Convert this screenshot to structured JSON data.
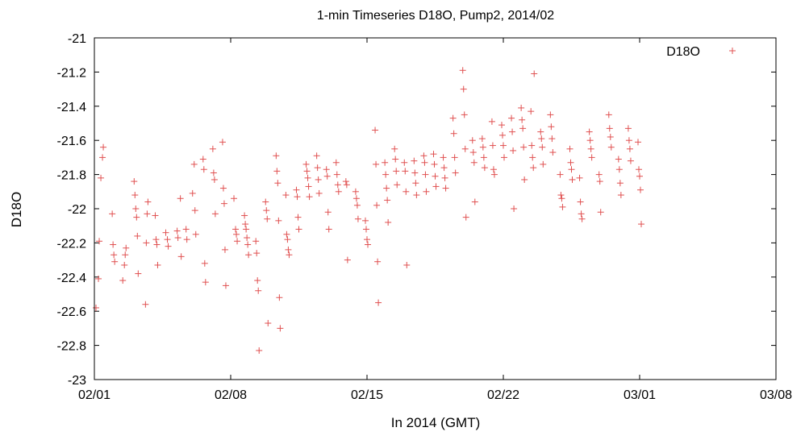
{
  "chart_data": {
    "type": "scatter",
    "title": "1-min Timeseries D18O, Pump2, 2014/02",
    "xlabel": "In 2014 (GMT)",
    "ylabel": "D18O",
    "xlim": [
      "2014-02-01",
      "2014-03-08"
    ],
    "ylim": [
      -23,
      -21
    ],
    "x_ticks": [
      "02/01",
      "02/08",
      "02/15",
      "02/22",
      "03/01",
      "03/08"
    ],
    "y_ticks": [
      "-21",
      "-21.2",
      "-21.4",
      "-21.6",
      "-21.8",
      "-22",
      "-22.2",
      "-22.4",
      "-22.6",
      "-22.8",
      "-23"
    ],
    "grid": false,
    "legend": "top-right",
    "marker": "+",
    "color": "#e05050",
    "series": [
      {
        "name": "D18O",
        "points": [
          [
            "2014-02-01T02:00",
            -22.58
          ],
          [
            "2014-02-01T05:00",
            -22.41
          ],
          [
            "2014-02-01T06:00",
            -22.19
          ],
          [
            "2014-02-01T08:00",
            -21.82
          ],
          [
            "2014-02-01T10:00",
            -21.7
          ],
          [
            "2014-02-01T11:00",
            -21.64
          ],
          [
            "2014-02-01T22:00",
            -22.03
          ],
          [
            "2014-02-01T23:00",
            -22.21
          ],
          [
            "2014-02-02T00:00",
            -22.27
          ],
          [
            "2014-02-02T01:00",
            -22.31
          ],
          [
            "2014-02-02T11:00",
            -22.42
          ],
          [
            "2014-02-02T13:00",
            -22.33
          ],
          [
            "2014-02-02T14:00",
            -22.27
          ],
          [
            "2014-02-02T15:00",
            -22.23
          ],
          [
            "2014-02-03T01:00",
            -21.84
          ],
          [
            "2014-02-03T02:00",
            -21.92
          ],
          [
            "2014-02-03T03:00",
            -22.0
          ],
          [
            "2014-02-03T04:00",
            -22.05
          ],
          [
            "2014-02-03T05:00",
            -22.16
          ],
          [
            "2014-02-03T06:00",
            -22.38
          ],
          [
            "2014-02-03T15:00",
            -22.56
          ],
          [
            "2014-02-03T16:00",
            -22.2
          ],
          [
            "2014-02-03T17:00",
            -22.03
          ],
          [
            "2014-02-03T18:00",
            -21.96
          ],
          [
            "2014-02-04T03:00",
            -22.04
          ],
          [
            "2014-02-04T04:00",
            -22.18
          ],
          [
            "2014-02-04T05:00",
            -22.21
          ],
          [
            "2014-02-04T06:00",
            -22.33
          ],
          [
            "2014-02-04T16:00",
            -22.14
          ],
          [
            "2014-02-04T18:00",
            -22.18
          ],
          [
            "2014-02-04T19:00",
            -22.22
          ],
          [
            "2014-02-05T06:00",
            -22.13
          ],
          [
            "2014-02-05T07:00",
            -22.17
          ],
          [
            "2014-02-05T10:00",
            -21.94
          ],
          [
            "2014-02-05T11:00",
            -22.28
          ],
          [
            "2014-02-05T17:00",
            -22.12
          ],
          [
            "2014-02-05T18:00",
            -22.18
          ],
          [
            "2014-02-06T01:00",
            -21.91
          ],
          [
            "2014-02-06T03:00",
            -21.74
          ],
          [
            "2014-02-06T04:00",
            -22.01
          ],
          [
            "2014-02-06T05:00",
            -22.15
          ],
          [
            "2014-02-06T14:00",
            -21.71
          ],
          [
            "2014-02-06T15:00",
            -21.77
          ],
          [
            "2014-02-06T16:00",
            -22.32
          ],
          [
            "2014-02-06T17:00",
            -22.43
          ],
          [
            "2014-02-07T02:00",
            -21.65
          ],
          [
            "2014-02-07T03:00",
            -21.79
          ],
          [
            "2014-02-07T04:00",
            -21.83
          ],
          [
            "2014-02-07T05:00",
            -22.03
          ],
          [
            "2014-02-07T14:00",
            -21.61
          ],
          [
            "2014-02-07T15:00",
            -21.88
          ],
          [
            "2014-02-07T16:00",
            -21.97
          ],
          [
            "2014-02-07T17:00",
            -22.24
          ],
          [
            "2014-02-07T18:00",
            -22.45
          ],
          [
            "2014-02-08T04:00",
            -21.94
          ],
          [
            "2014-02-08T06:00",
            -22.12
          ],
          [
            "2014-02-08T07:00",
            -22.15
          ],
          [
            "2014-02-08T08:00",
            -22.19
          ],
          [
            "2014-02-08T17:00",
            -22.04
          ],
          [
            "2014-02-08T18:00",
            -22.09
          ],
          [
            "2014-02-08T19:00",
            -22.12
          ],
          [
            "2014-02-08T20:00",
            -22.17
          ],
          [
            "2014-02-08T21:00",
            -22.21
          ],
          [
            "2014-02-08T22:00",
            -22.27
          ],
          [
            "2014-02-09T07:00",
            -22.19
          ],
          [
            "2014-02-09T08:00",
            -22.26
          ],
          [
            "2014-02-09T09:00",
            -22.42
          ],
          [
            "2014-02-09T10:00",
            -22.48
          ],
          [
            "2014-02-09T11:00",
            -22.83
          ],
          [
            "2014-02-09T19:00",
            -21.96
          ],
          [
            "2014-02-09T20:00",
            -22.01
          ],
          [
            "2014-02-09T21:00",
            -22.06
          ],
          [
            "2014-02-09T22:00",
            -22.67
          ],
          [
            "2014-02-10T08:00",
            -21.69
          ],
          [
            "2014-02-10T09:00",
            -21.78
          ],
          [
            "2014-02-10T10:00",
            -21.85
          ],
          [
            "2014-02-10T11:00",
            -22.07
          ],
          [
            "2014-02-10T12:00",
            -22.52
          ],
          [
            "2014-02-10T13:00",
            -22.7
          ],
          [
            "2014-02-10T20:00",
            -21.92
          ],
          [
            "2014-02-10T21:00",
            -22.15
          ],
          [
            "2014-02-10T22:00",
            -22.18
          ],
          [
            "2014-02-10T23:00",
            -22.24
          ],
          [
            "2014-02-11T00:00",
            -22.27
          ],
          [
            "2014-02-11T09:00",
            -21.89
          ],
          [
            "2014-02-11T10:00",
            -21.93
          ],
          [
            "2014-02-11T11:00",
            -22.05
          ],
          [
            "2014-02-11T12:00",
            -22.12
          ],
          [
            "2014-02-11T21:00",
            -21.74
          ],
          [
            "2014-02-11T22:00",
            -21.78
          ],
          [
            "2014-02-11T23:00",
            -21.82
          ],
          [
            "2014-02-12T00:00",
            -21.87
          ],
          [
            "2014-02-12T01:00",
            -21.93
          ],
          [
            "2014-02-12T10:00",
            -21.69
          ],
          [
            "2014-02-12T11:00",
            -21.76
          ],
          [
            "2014-02-12T12:00",
            -21.83
          ],
          [
            "2014-02-12T13:00",
            -21.91
          ],
          [
            "2014-02-12T22:00",
            -21.77
          ],
          [
            "2014-02-12T23:00",
            -21.81
          ],
          [
            "2014-02-13T00:00",
            -22.02
          ],
          [
            "2014-02-13T01:00",
            -22.12
          ],
          [
            "2014-02-13T10:00",
            -21.73
          ],
          [
            "2014-02-13T11:00",
            -21.8
          ],
          [
            "2014-02-13T12:00",
            -21.86
          ],
          [
            "2014-02-13T13:00",
            -21.9
          ],
          [
            "2014-02-13T22:00",
            -21.84
          ],
          [
            "2014-02-13T23:00",
            -21.86
          ],
          [
            "2014-02-14T00:00",
            -22.3
          ],
          [
            "2014-02-14T10:00",
            -21.9
          ],
          [
            "2014-02-14T11:00",
            -21.94
          ],
          [
            "2014-02-14T12:00",
            -21.98
          ],
          [
            "2014-02-14T13:00",
            -22.06
          ],
          [
            "2014-02-14T22:00",
            -22.07
          ],
          [
            "2014-02-14T23:00",
            -22.12
          ],
          [
            "2014-02-15T00:00",
            -22.18
          ],
          [
            "2014-02-15T01:00",
            -22.21
          ],
          [
            "2014-02-15T10:00",
            -21.54
          ],
          [
            "2014-02-15T11:00",
            -21.74
          ],
          [
            "2014-02-15T12:00",
            -21.98
          ],
          [
            "2014-02-15T13:00",
            -22.31
          ],
          [
            "2014-02-15T14:00",
            -22.55
          ],
          [
            "2014-02-15T22:00",
            -21.73
          ],
          [
            "2014-02-15T23:00",
            -21.8
          ],
          [
            "2014-02-16T00:00",
            -21.88
          ],
          [
            "2014-02-16T01:00",
            -21.95
          ],
          [
            "2014-02-16T02:00",
            -22.08
          ],
          [
            "2014-02-16T10:00",
            -21.65
          ],
          [
            "2014-02-16T11:00",
            -21.71
          ],
          [
            "2014-02-16T12:00",
            -21.78
          ],
          [
            "2014-02-16T13:00",
            -21.86
          ],
          [
            "2014-02-16T22:00",
            -21.73
          ],
          [
            "2014-02-16T23:00",
            -21.78
          ],
          [
            "2014-02-17T00:00",
            -21.9
          ],
          [
            "2014-02-17T01:00",
            -22.33
          ],
          [
            "2014-02-17T10:00",
            -21.72
          ],
          [
            "2014-02-17T11:00",
            -21.79
          ],
          [
            "2014-02-17T12:00",
            -21.85
          ],
          [
            "2014-02-17T13:00",
            -21.92
          ],
          [
            "2014-02-17T22:00",
            -21.69
          ],
          [
            "2014-02-17T23:00",
            -21.73
          ],
          [
            "2014-02-18T00:00",
            -21.8
          ],
          [
            "2014-02-18T01:00",
            -21.9
          ],
          [
            "2014-02-18T10:00",
            -21.68
          ],
          [
            "2014-02-18T11:00",
            -21.74
          ],
          [
            "2014-02-18T12:00",
            -21.81
          ],
          [
            "2014-02-18T13:00",
            -21.87
          ],
          [
            "2014-02-18T22:00",
            -21.7
          ],
          [
            "2014-02-18T23:00",
            -21.76
          ],
          [
            "2014-02-19T00:00",
            -21.82
          ],
          [
            "2014-02-19T01:00",
            -21.88
          ],
          [
            "2014-02-19T10:00",
            -21.47
          ],
          [
            "2014-02-19T11:00",
            -21.56
          ],
          [
            "2014-02-19T12:00",
            -21.7
          ],
          [
            "2014-02-19T13:00",
            -21.79
          ],
          [
            "2014-02-19T22:00",
            -21.19
          ],
          [
            "2014-02-19T23:00",
            -21.3
          ],
          [
            "2014-02-20T00:00",
            -21.45
          ],
          [
            "2014-02-20T01:00",
            -21.65
          ],
          [
            "2014-02-20T02:00",
            -22.05
          ],
          [
            "2014-02-20T10:00",
            -21.6
          ],
          [
            "2014-02-20T11:00",
            -21.67
          ],
          [
            "2014-02-20T12:00",
            -21.73
          ],
          [
            "2014-02-20T13:00",
            -21.96
          ],
          [
            "2014-02-20T22:00",
            -21.59
          ],
          [
            "2014-02-20T23:00",
            -21.64
          ],
          [
            "2014-02-21T00:00",
            -21.7
          ],
          [
            "2014-02-21T01:00",
            -21.76
          ],
          [
            "2014-02-21T10:00",
            -21.49
          ],
          [
            "2014-02-21T11:00",
            -21.63
          ],
          [
            "2014-02-21T12:00",
            -21.77
          ],
          [
            "2014-02-21T13:00",
            -21.8
          ],
          [
            "2014-02-21T22:00",
            -21.51
          ],
          [
            "2014-02-21T23:00",
            -21.57
          ],
          [
            "2014-02-22T00:00",
            -21.63
          ],
          [
            "2014-02-22T01:00",
            -21.7
          ],
          [
            "2014-02-22T10:00",
            -21.47
          ],
          [
            "2014-02-22T11:00",
            -21.55
          ],
          [
            "2014-02-22T12:00",
            -21.66
          ],
          [
            "2014-02-22T13:00",
            -22.0
          ],
          [
            "2014-02-22T22:00",
            -21.41
          ],
          [
            "2014-02-22T23:00",
            -21.48
          ],
          [
            "2014-02-23T00:00",
            -21.53
          ],
          [
            "2014-02-23T01:00",
            -21.64
          ],
          [
            "2014-02-23T02:00",
            -21.83
          ],
          [
            "2014-02-23T10:00",
            -21.43
          ],
          [
            "2014-02-23T11:00",
            -21.63
          ],
          [
            "2014-02-23T12:00",
            -21.7
          ],
          [
            "2014-02-23T13:00",
            -21.76
          ],
          [
            "2014-02-23T14:00",
            -21.21
          ],
          [
            "2014-02-23T22:00",
            -21.55
          ],
          [
            "2014-02-23T23:00",
            -21.59
          ],
          [
            "2014-02-24T00:00",
            -21.64
          ],
          [
            "2014-02-24T01:00",
            -21.74
          ],
          [
            "2014-02-24T10:00",
            -21.45
          ],
          [
            "2014-02-24T11:00",
            -21.52
          ],
          [
            "2014-02-24T12:00",
            -21.59
          ],
          [
            "2014-02-24T13:00",
            -21.67
          ],
          [
            "2014-02-24T22:00",
            -21.8
          ],
          [
            "2014-02-24T23:00",
            -21.92
          ],
          [
            "2014-02-25T00:00",
            -21.94
          ],
          [
            "2014-02-25T01:00",
            -21.99
          ],
          [
            "2014-02-25T10:00",
            -21.65
          ],
          [
            "2014-02-25T11:00",
            -21.73
          ],
          [
            "2014-02-25T12:00",
            -21.77
          ],
          [
            "2014-02-25T13:00",
            -21.83
          ],
          [
            "2014-02-25T22:00",
            -21.82
          ],
          [
            "2014-02-25T23:00",
            -21.96
          ],
          [
            "2014-02-26T00:00",
            -22.03
          ],
          [
            "2014-02-26T01:00",
            -22.06
          ],
          [
            "2014-02-26T10:00",
            -21.55
          ],
          [
            "2014-02-26T11:00",
            -21.6
          ],
          [
            "2014-02-26T12:00",
            -21.65
          ],
          [
            "2014-02-26T13:00",
            -21.7
          ],
          [
            "2014-02-26T22:00",
            -21.8
          ],
          [
            "2014-02-26T23:00",
            -21.84
          ],
          [
            "2014-02-27T00:00",
            -22.02
          ],
          [
            "2014-02-27T10:00",
            -21.45
          ],
          [
            "2014-02-27T11:00",
            -21.53
          ],
          [
            "2014-02-27T12:00",
            -21.58
          ],
          [
            "2014-02-27T13:00",
            -21.64
          ],
          [
            "2014-02-27T22:00",
            -21.71
          ],
          [
            "2014-02-27T23:00",
            -21.77
          ],
          [
            "2014-02-28T00:00",
            -21.85
          ],
          [
            "2014-02-28T01:00",
            -21.92
          ],
          [
            "2014-02-28T10:00",
            -21.53
          ],
          [
            "2014-02-28T11:00",
            -21.6
          ],
          [
            "2014-02-28T12:00",
            -21.65
          ],
          [
            "2014-02-28T13:00",
            -21.72
          ],
          [
            "2014-02-28T22:00",
            -21.61
          ],
          [
            "2014-02-28T23:00",
            -21.77
          ],
          [
            "2014-03-01T00:00",
            -21.81
          ],
          [
            "2014-03-01T01:00",
            -21.89
          ],
          [
            "2014-03-01T02:00",
            -22.09
          ]
        ]
      }
    ]
  }
}
